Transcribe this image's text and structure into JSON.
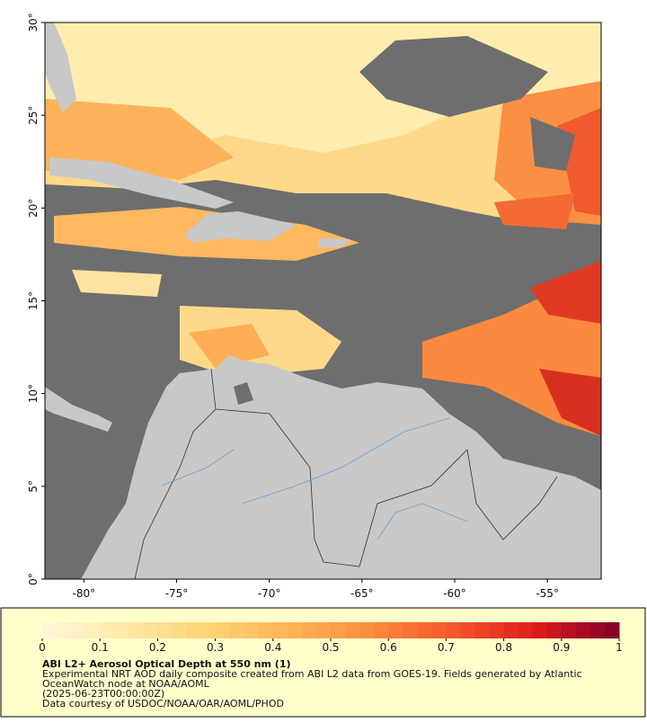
{
  "map": {
    "lon_range": [
      -82.1,
      -52.1
    ],
    "lat_range": [
      0,
      30
    ],
    "lat_ticks": [
      {
        "value": 0,
        "label": "0°"
      },
      {
        "value": 5,
        "label": "5°"
      },
      {
        "value": 10,
        "label": "10°"
      },
      {
        "value": 15,
        "label": "15°"
      },
      {
        "value": 20,
        "label": "20°"
      },
      {
        "value": 25,
        "label": "25°"
      },
      {
        "value": 30,
        "label": "30°"
      }
    ],
    "lon_ticks": [
      {
        "value": -80,
        "label": "-80°"
      },
      {
        "value": -75,
        "label": "-75°"
      },
      {
        "value": -70,
        "label": "-70°"
      },
      {
        "value": -65,
        "label": "-65°"
      },
      {
        "value": -60,
        "label": "-60°"
      },
      {
        "value": -55,
        "label": "-55°"
      }
    ]
  },
  "colorbar": {
    "range": [
      0,
      1
    ],
    "ticks": [
      0,
      0.1,
      0.2,
      0.3,
      0.4,
      0.5,
      0.6,
      0.7,
      0.8,
      0.9,
      1
    ],
    "colors": [
      "#fff8d8",
      "#fee9a8",
      "#fed475",
      "#fdb456",
      "#fc8c3c",
      "#f6552b",
      "#dc1c1c",
      "#800026"
    ]
  },
  "caption": {
    "title": "ABI L2+ Aerosol Optical Depth at 550 nm (1)",
    "lines": [
      "Experimental NRT AOD daily composite created from ABI L2 data from GOES-19. Fields generated by Atlantic",
      "OceanWatch node at NOAA/AOML",
      "(2025-06-23T00:00:00Z)",
      "Data courtesy of USDOC/NOAA/OAR/AOML/PHOD"
    ]
  }
}
